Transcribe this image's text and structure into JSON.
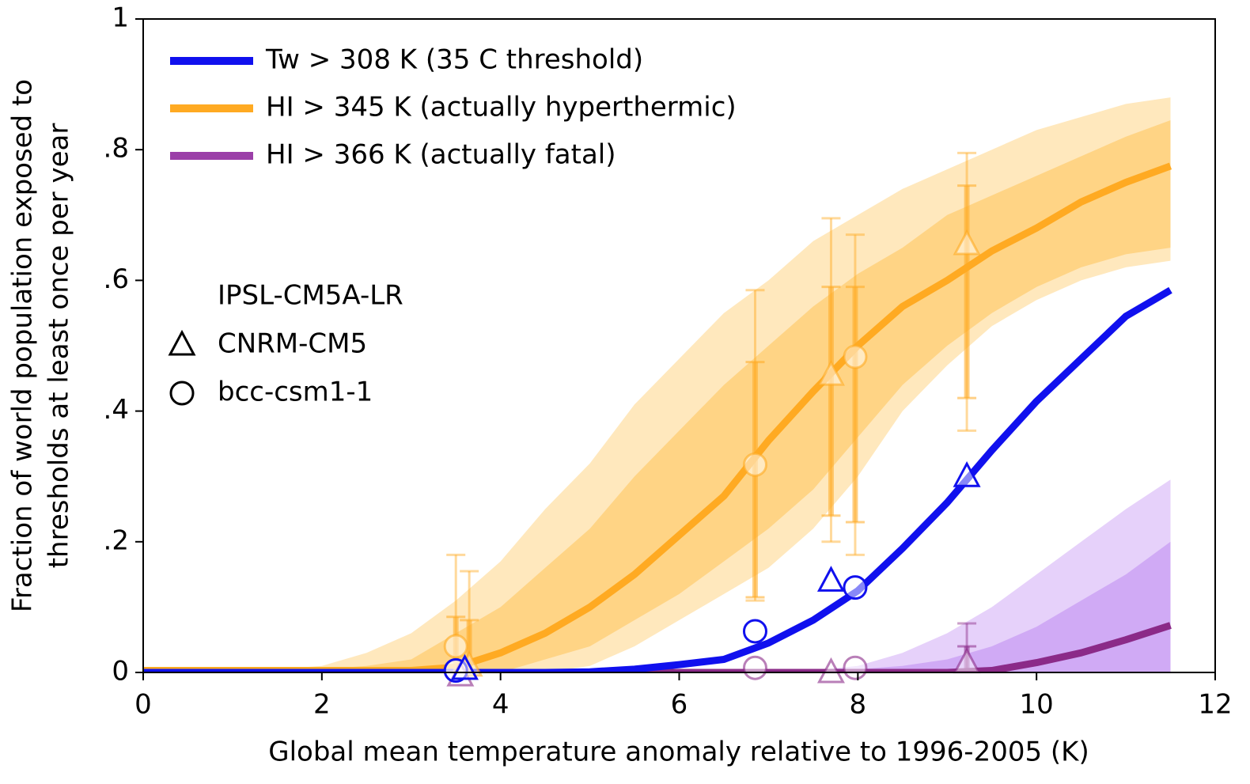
{
  "chart_data": {
    "type": "line",
    "xlabel": "Global mean temperature anomaly relative to 1996-2005 (K)",
    "ylabel": [
      "Fraction of world population exposed to",
      "thresholds at least once per year"
    ],
    "xlim": [
      0,
      12
    ],
    "ylim": [
      0,
      1
    ],
    "xticks": [
      0,
      2,
      4,
      6,
      8,
      10,
      12
    ],
    "yticks": [
      0,
      {
        "value": 0.2,
        "label": ".2"
      },
      {
        "value": 0.4,
        "label": ".4"
      },
      {
        "value": 0.6,
        "label": ".6"
      },
      {
        "value": 0.8,
        "label": ".8"
      },
      1
    ],
    "x": [
      0,
      0.5,
      1,
      1.5,
      2,
      2.5,
      3,
      3.5,
      4,
      4.5,
      5,
      5.5,
      6,
      6.5,
      7,
      7.5,
      8,
      8.5,
      9,
      9.5,
      10,
      10.5,
      11,
      11.5
    ],
    "models": [
      {
        "name": "IPSL-CM5A-LR",
        "marker": "line"
      },
      {
        "name": "CNRM-CM5",
        "marker": "triangle"
      },
      {
        "name": "bcc-csm1-1",
        "marker": "circle"
      }
    ],
    "series": [
      {
        "name": "HI > 345 K  (actually hyperthermic)",
        "color": "#ffaa22",
        "band_color": "#ffb733",
        "values": [
          0.003,
          0.003,
          0.003,
          0.003,
          0.003,
          0.003,
          0.003,
          0.008,
          0.03,
          0.06,
          0.1,
          0.15,
          0.21,
          0.27,
          0.355,
          0.43,
          0.5,
          0.56,
          0.6,
          0.645,
          0.68,
          0.72,
          0.75,
          0.775
        ],
        "outer_lower": [
          0,
          0,
          0,
          0,
          0,
          0,
          0,
          0,
          0,
          0,
          0.01,
          0.04,
          0.08,
          0.12,
          0.16,
          0.22,
          0.3,
          0.4,
          0.47,
          0.53,
          0.57,
          0.6,
          0.62,
          0.63
        ],
        "outer_upper": [
          0,
          0,
          0.002,
          0.005,
          0.01,
          0.03,
          0.06,
          0.11,
          0.17,
          0.25,
          0.32,
          0.41,
          0.48,
          0.55,
          0.6,
          0.66,
          0.7,
          0.74,
          0.77,
          0.8,
          0.83,
          0.85,
          0.87,
          0.88
        ],
        "inner_lower": [
          0,
          0,
          0,
          0,
          0,
          0,
          0,
          0,
          0,
          0.02,
          0.04,
          0.08,
          0.12,
          0.17,
          0.22,
          0.28,
          0.36,
          0.44,
          0.5,
          0.55,
          0.59,
          0.62,
          0.64,
          0.65
        ],
        "inner_upper": [
          0,
          0,
          0,
          0.002,
          0.005,
          0.01,
          0.02,
          0.06,
          0.1,
          0.16,
          0.22,
          0.3,
          0.37,
          0.44,
          0.5,
          0.56,
          0.61,
          0.65,
          0.7,
          0.73,
          0.76,
          0.79,
          0.82,
          0.845
        ],
        "points": [
          {
            "marker": "circle",
            "x": [
              3.5,
              6.85,
              7.97
            ],
            "y": [
              0.04,
              0.318,
              0.483
            ]
          },
          {
            "marker": "triangle",
            "x": [
              3.65,
              7.7,
              9.22
            ],
            "y": [
              0.01,
              0.455,
              0.655
            ]
          }
        ],
        "errorbars": [
          {
            "x": 3.5,
            "outer": [
              0,
              0.18
            ],
            "inner": [
              0,
              0.085
            ]
          },
          {
            "x": 3.65,
            "outer": [
              0,
              0.155
            ],
            "inner": [
              0,
              0.08
            ]
          },
          {
            "x": 6.85,
            "outer": [
              0.11,
              0.585
            ],
            "inner": [
              0.115,
              0.475
            ]
          },
          {
            "x": 7.7,
            "outer": [
              0.2,
              0.695
            ],
            "inner": [
              0.24,
              0.59
            ]
          },
          {
            "x": 7.97,
            "outer": [
              0.18,
              0.67
            ],
            "inner": [
              0.23,
              0.59
            ]
          },
          {
            "x": 9.22,
            "outer": [
              0.37,
              0.795
            ],
            "inner": [
              0.42,
              0.745
            ]
          }
        ]
      },
      {
        "name": "HI > 366 K  (actually fatal)",
        "color": "#8b2a88",
        "legend_color": "#9b3fa8",
        "band_color": "#b070ee",
        "values": [
          0,
          0,
          0,
          0,
          0,
          0,
          0,
          0,
          0,
          0,
          0,
          0,
          0,
          0,
          0,
          0,
          0,
          0,
          0,
          0.003,
          0.015,
          0.03,
          0.05,
          0.072
        ],
        "outer_lower": [
          0,
          0,
          0,
          0,
          0,
          0,
          0,
          0,
          0,
          0,
          0,
          0,
          0,
          0,
          0,
          0,
          0,
          0,
          0,
          0,
          0,
          0,
          0,
          0
        ],
        "outer_upper": [
          0,
          0,
          0,
          0,
          0,
          0,
          0,
          0,
          0,
          0,
          0,
          0,
          0,
          0,
          0,
          0.003,
          0.01,
          0.03,
          0.06,
          0.1,
          0.15,
          0.2,
          0.25,
          0.295
        ],
        "inner_lower": [
          0,
          0,
          0,
          0,
          0,
          0,
          0,
          0,
          0,
          0,
          0,
          0,
          0,
          0,
          0,
          0,
          0,
          0,
          0,
          0,
          0,
          0,
          0,
          0
        ],
        "inner_upper": [
          0,
          0,
          0,
          0,
          0,
          0,
          0,
          0,
          0,
          0,
          0,
          0,
          0,
          0,
          0,
          0,
          0.005,
          0.01,
          0.02,
          0.04,
          0.07,
          0.11,
          0.15,
          0.2
        ],
        "points": [
          {
            "marker": "circle",
            "x": [
              3.5,
              6.85,
              7.97
            ],
            "y": [
              0.003,
              0.007,
              0.007
            ]
          },
          {
            "marker": "triangle",
            "x": [
              3.55,
              7.7,
              9.22
            ],
            "y": [
              -0.005,
              0,
              0.015
            ]
          }
        ],
        "errorbars": [
          {
            "x": 9.22,
            "outer": [
              0,
              0.075
            ],
            "inner": [
              0,
              0.04
            ]
          }
        ]
      },
      {
        "name": "Tw > 308 K  (35 C threshold)",
        "color": "#1010ee",
        "values": [
          0,
          0,
          0,
          0,
          0,
          0,
          0,
          0,
          0,
          0,
          0.001,
          0.005,
          0.012,
          0.02,
          0.045,
          0.08,
          0.125,
          0.19,
          0.26,
          0.34,
          0.415,
          0.48,
          0.545,
          0.585
        ],
        "points": [
          {
            "marker": "circle",
            "x": [
              3.5,
              6.85,
              7.97
            ],
            "y": [
              0.003,
              0.063,
              0.13
            ]
          },
          {
            "marker": "triangle",
            "x": [
              3.6,
              7.7,
              9.22
            ],
            "y": [
              0.005,
              0.14,
              0.3
            ]
          }
        ]
      }
    ],
    "legend_order": [
      2,
      0,
      1
    ]
  }
}
